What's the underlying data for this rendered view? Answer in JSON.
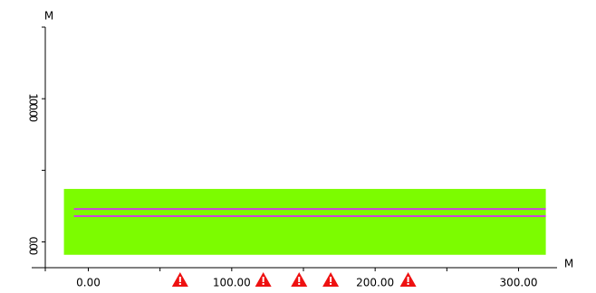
{
  "chart_data": {
    "type": "track",
    "x_unit": "M",
    "y_unit": "M",
    "xlim": [
      -30,
      330
    ],
    "ylim": [
      -18,
      150
    ],
    "xticks": [
      {
        "value": 0,
        "label": "0.00"
      },
      {
        "value": 100,
        "label": "100.00"
      },
      {
        "value": 200,
        "label": "200.00"
      },
      {
        "value": 300,
        "label": "300.00"
      }
    ],
    "xminor_ticks": [
      50,
      150,
      250
    ],
    "yticks": [
      {
        "value": 0,
        "label": "0.00"
      },
      {
        "value": 100,
        "label": "100.00"
      }
    ],
    "yminor_ticks": [
      50,
      150
    ],
    "band": {
      "x": [
        -17,
        319
      ],
      "y": [
        -9,
        37
      ],
      "color": "#7cfc00"
    },
    "series": [
      {
        "x": [
          -10,
          319
        ],
        "values": [
          23,
          23
        ],
        "color": "#cc44dd"
      },
      {
        "x": [
          -10,
          319
        ],
        "values": [
          18,
          18
        ],
        "color": "#cc44dd"
      }
    ],
    "warnings": [
      64,
      122,
      147,
      169,
      223
    ],
    "warning_color": "#ee1111"
  }
}
